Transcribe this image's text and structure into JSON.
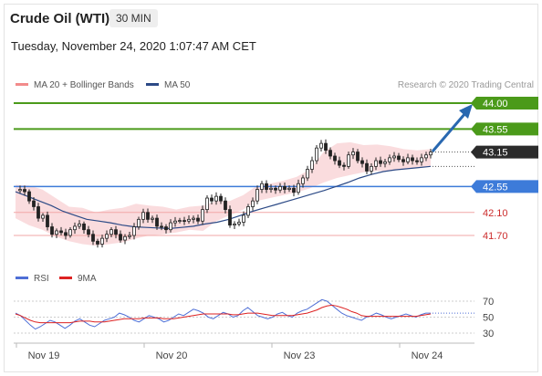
{
  "header": {
    "title": "Crude Oil (WTI)",
    "interval": "30 MIN",
    "timestamp": "Tuesday, November 24, 2020 1:07:47 AM CET"
  },
  "legend": {
    "ma20": "MA 20 + Bollinger Bands",
    "ma50": "MA 50",
    "credit": "Research © 2020 Trading Central",
    "rsi": "RSI",
    "ma9": "9MA"
  },
  "colors": {
    "up_levels": "#4b9a1a",
    "support": "#3d7bd9",
    "down_levels": "#cc2b2b",
    "candles": "#222222",
    "bollinger": "#f7c9cc",
    "ma50": "#2c4a86",
    "rsi_line": "#4f6fd6",
    "rsi_ma": "#dd2222",
    "arrow": "#2968b0"
  },
  "chart_data": {
    "type": "candlestick",
    "x_axis_labels": [
      "Nov 19",
      "Nov 20",
      "Nov 23",
      "Nov 24"
    ],
    "y_range": [
      41.4,
      44.15
    ],
    "last_price": 43.15,
    "levels": [
      {
        "label": "44.00",
        "value": 44.0,
        "kind": "resistance"
      },
      {
        "label": "43.55",
        "value": 43.55,
        "kind": "resistance"
      },
      {
        "label": "43.15",
        "value": 43.15,
        "kind": "last"
      },
      {
        "label": "42.55",
        "value": 42.55,
        "kind": "support"
      },
      {
        "label": "42.10",
        "value": 42.1,
        "kind": "support-minor"
      },
      {
        "label": "41.70",
        "value": 41.7,
        "kind": "support-minor"
      }
    ],
    "close_path": [
      42.48,
      42.5,
      42.46,
      42.3,
      42.2,
      42.0,
      42.05,
      41.85,
      41.72,
      41.78,
      41.75,
      41.7,
      41.8,
      41.86,
      41.9,
      41.8,
      41.72,
      41.6,
      41.55,
      41.65,
      41.72,
      41.8,
      41.72,
      41.62,
      41.68,
      41.7,
      41.85,
      41.98,
      42.1,
      41.98,
      42.0,
      41.86,
      41.85,
      41.8,
      41.92,
      41.95,
      41.96,
      41.95,
      41.98,
      42.0,
      41.95,
      42.15,
      42.35,
      42.3,
      42.38,
      42.3,
      42.15,
      41.88,
      41.9,
      41.93,
      42.05,
      42.2,
      42.3,
      42.5,
      42.6,
      42.5,
      42.52,
      42.49,
      42.55,
      42.5,
      42.52,
      42.45,
      42.6,
      42.7,
      42.85,
      43.0,
      43.22,
      43.3,
      43.18,
      43.08,
      43.0,
      42.92,
      42.9,
      43.1,
      43.15,
      43.0,
      42.95,
      42.82,
      42.9,
      43.0,
      42.95,
      42.98,
      43.05,
      43.08,
      43.02,
      42.98,
      43.05,
      43.0,
      42.98,
      43.05,
      43.1,
      43.15
    ],
    "ma50_path": [
      42.46,
      42.38,
      42.3,
      42.22,
      42.12,
      42.05,
      41.98,
      41.95,
      41.92,
      41.88,
      41.85,
      41.84,
      41.83,
      41.82,
      41.84,
      41.86,
      41.9,
      41.93,
      41.98,
      42.05,
      42.12,
      42.18,
      42.24,
      42.3,
      42.36,
      42.42,
      42.48,
      42.55,
      42.62,
      42.7,
      42.76,
      42.81,
      42.84,
      42.86,
      42.88,
      42.9
    ],
    "bb_upper": [
      42.58,
      42.57,
      42.5,
      42.35,
      42.2,
      42.18,
      42.1,
      42.15,
      42.18,
      42.25,
      42.22,
      42.2,
      42.15,
      42.2,
      42.22,
      42.3,
      42.3,
      42.4,
      42.56,
      42.6,
      42.65,
      42.72,
      42.85,
      43.15,
      43.3,
      43.32,
      43.27,
      43.28,
      43.25,
      43.2,
      43.18,
      43.2
    ],
    "bb_lower": [
      42.0,
      41.88,
      41.8,
      41.68,
      41.6,
      41.55,
      41.52,
      41.55,
      41.58,
      41.65,
      41.7,
      41.72,
      41.75,
      41.8,
      41.78,
      41.95,
      42.05,
      42.15,
      42.3,
      42.35,
      42.4,
      42.45,
      42.52,
      42.62,
      42.7,
      42.75,
      42.8,
      42.82,
      42.82,
      42.85,
      42.88,
      42.9
    ],
    "rsi": {
      "ticks": [
        "70",
        "50",
        "30"
      ],
      "range": [
        20,
        80
      ],
      "values": [
        55,
        52,
        46,
        40,
        35,
        38,
        42,
        46,
        44,
        40,
        36,
        40,
        45,
        48,
        44,
        40,
        38,
        42,
        46,
        48,
        50,
        55,
        53,
        50,
        46,
        44,
        48,
        52,
        50,
        48,
        44,
        46,
        50,
        54,
        52,
        56,
        60,
        58,
        55,
        50,
        48,
        52,
        56,
        54,
        50,
        52,
        58,
        62,
        57,
        52,
        50,
        48,
        50,
        54,
        56,
        52,
        50,
        55,
        58,
        60,
        64,
        68,
        72,
        70,
        65,
        60,
        55,
        52,
        50,
        48,
        46,
        50,
        52,
        55,
        53,
        50,
        48,
        50,
        52,
        54,
        52,
        50,
        53,
        55,
        55
      ],
      "ma9": [
        54,
        52,
        49,
        46,
        44,
        43,
        43,
        43,
        43,
        43,
        43,
        43,
        44,
        45,
        45,
        45,
        44,
        44,
        44,
        45,
        46,
        47,
        48,
        48,
        48,
        48,
        49,
        49,
        49,
        49,
        48,
        48,
        48,
        49,
        50,
        51,
        52,
        53,
        54,
        54,
        54,
        54,
        54,
        54,
        53,
        53,
        54,
        55,
        55,
        55,
        54,
        53,
        52,
        52,
        52,
        52,
        52,
        53,
        54,
        55,
        57,
        59,
        62,
        64,
        65,
        64,
        62,
        60,
        57,
        55,
        52,
        51,
        51,
        51,
        51,
        51,
        51,
        51,
        51,
        51,
        51,
        51,
        52,
        53,
        54
      ]
    }
  }
}
